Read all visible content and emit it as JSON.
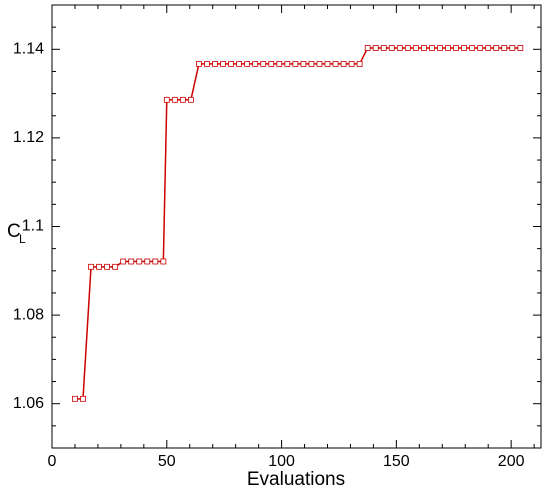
{
  "chart_data": {
    "type": "line",
    "x_label": "Evaluations",
    "y_label": "C",
    "y_label_subscript": "L",
    "x": [
      10,
      13.5,
      17,
      20.5,
      24,
      27.5,
      31,
      34.5,
      38,
      41.5,
      45,
      48.5,
      50,
      53.5,
      57,
      60.5,
      64,
      67.5,
      71,
      74.5,
      78,
      81.5,
      85,
      88.5,
      92,
      95.5,
      99,
      102.5,
      106,
      109.5,
      113,
      116.5,
      120,
      123.5,
      127,
      130.5,
      134,
      137.5,
      141,
      144.5,
      148,
      151.5,
      155,
      158.5,
      162,
      165.5,
      169,
      172.5,
      176,
      179.5,
      183,
      186.5,
      190,
      193.5,
      197,
      200.5,
      204
    ],
    "series": [
      {
        "color": "#cc0000",
        "values": [
          1.0611,
          1.0611,
          1.0909,
          1.0909,
          1.0909,
          1.0909,
          1.0921,
          1.0921,
          1.0921,
          1.0921,
          1.0921,
          1.0921,
          1.1286,
          1.1286,
          1.1286,
          1.1286,
          1.1367,
          1.1367,
          1.1367,
          1.1367,
          1.1367,
          1.1367,
          1.1367,
          1.1367,
          1.1367,
          1.1367,
          1.1367,
          1.1367,
          1.1367,
          1.1367,
          1.1367,
          1.1367,
          1.1367,
          1.1367,
          1.1367,
          1.1367,
          1.1367,
          1.1403,
          1.1403,
          1.1403,
          1.1403,
          1.1403,
          1.1403,
          1.1403,
          1.1403,
          1.1403,
          1.1403,
          1.1403,
          1.1403,
          1.1403,
          1.1403,
          1.1403,
          1.1403,
          1.1403,
          1.1403,
          1.1403,
          1.1403
        ]
      }
    ],
    "xlim": [
      0,
      213
    ],
    "ylim": [
      1.05,
      1.15
    ],
    "xticks": [
      0,
      50,
      100,
      150,
      200
    ],
    "yticks": [
      1.06,
      1.08,
      1.1,
      1.12,
      1.14
    ],
    "xminorticks": [
      10,
      20,
      30,
      40,
      60,
      70,
      80,
      90,
      110,
      120,
      130,
      140,
      160,
      170,
      180,
      190,
      210
    ],
    "yminorticks": [
      1.055,
      1.065,
      1.07,
      1.075,
      1.085,
      1.09,
      1.095,
      1.105,
      1.11,
      1.115,
      1.125,
      1.13,
      1.135,
      1.145
    ]
  }
}
